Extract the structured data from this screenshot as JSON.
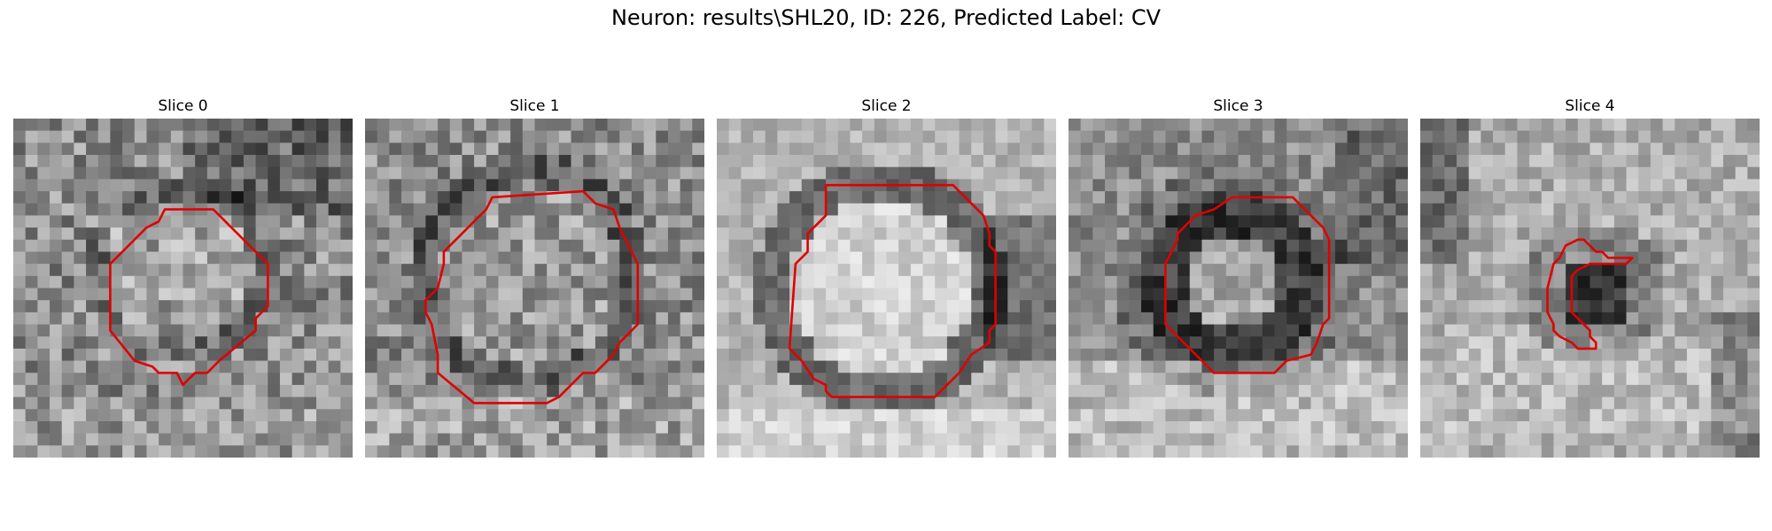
{
  "figure": {
    "title": "Neuron: results\\SHL20, ID: 226, Predicted Label: CV"
  },
  "slices": [
    {
      "title": "Slice 0"
    },
    {
      "title": "Slice 1"
    },
    {
      "title": "Slice 2"
    },
    {
      "title": "Slice 3"
    },
    {
      "title": "Slice 4"
    }
  ],
  "style": {
    "contour_color": "#e00000",
    "colormap": "grayscale"
  }
}
